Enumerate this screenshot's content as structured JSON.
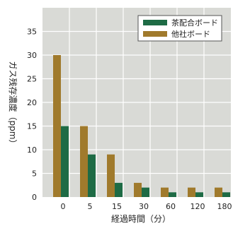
{
  "chart_data": {
    "type": "bar",
    "categories": [
      "0",
      "5",
      "15",
      "30",
      "60",
      "120",
      "180"
    ],
    "series": [
      {
        "name": "他社ボード",
        "values": [
          30,
          15,
          9,
          3,
          2,
          2,
          2
        ],
        "color": "#a07a2c"
      },
      {
        "name": "茶配合ボード",
        "values": [
          15,
          9,
          3,
          2,
          1,
          1,
          1
        ],
        "color": "#1e6b45"
      }
    ],
    "xlabel": "経過時間（分）",
    "ylabel": "ガス残存濃度（ppm）",
    "ylim": [
      0,
      40
    ],
    "yticks": [
      0,
      5,
      10,
      15,
      20,
      25,
      30,
      35
    ],
    "grid": true,
    "legend_position": "top-right",
    "legend_order": [
      "茶配合ボード",
      "他社ボード"
    ],
    "plot_background": "#d9dad6"
  }
}
